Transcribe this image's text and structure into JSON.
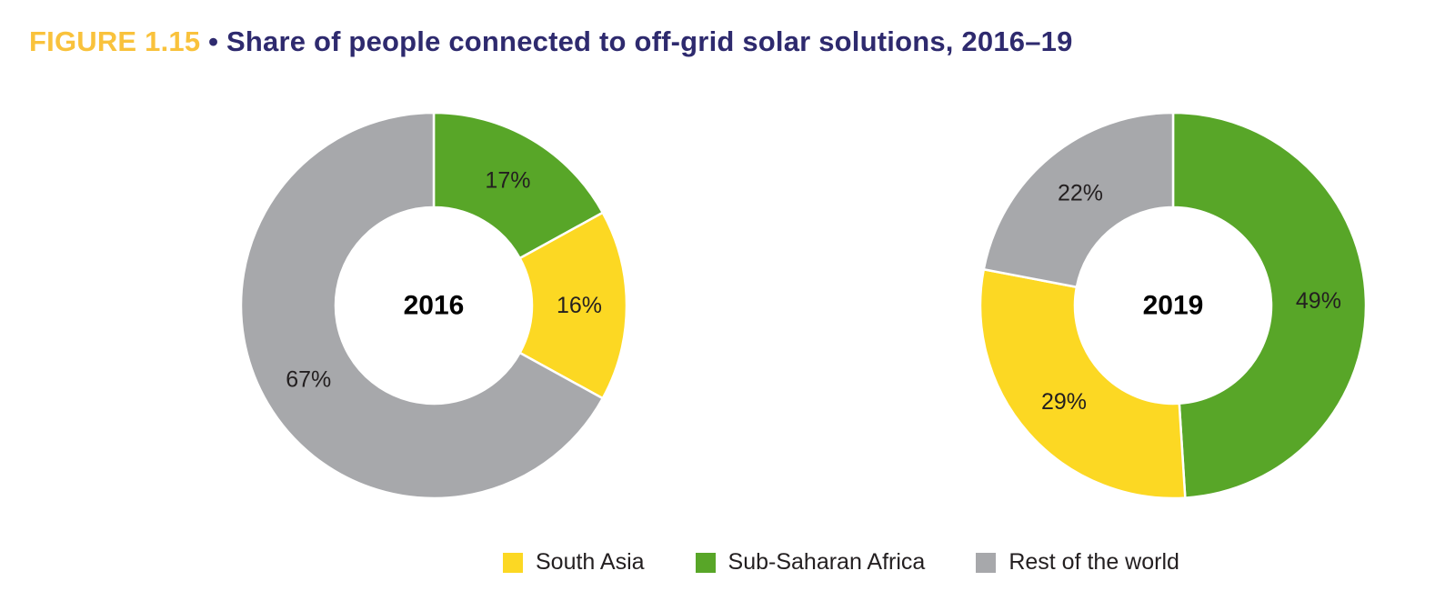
{
  "figure": {
    "label": "FIGURE 1.15",
    "separator": "•",
    "title": "Share of people connected to off-grid solar solutions, 2016–19"
  },
  "colors": {
    "South Asia": "#fcd823",
    "Sub-Saharan Africa": "#58a628",
    "Rest of the world": "#a7a8ab",
    "title_label": "#f9c23c",
    "title_text": "#2e2a6e"
  },
  "chart_data": [
    {
      "type": "pie",
      "center_label": "2016",
      "categories": [
        "Sub-Saharan Africa",
        "South Asia",
        "Rest of the world"
      ],
      "values": [
        17,
        16,
        67
      ],
      "labels": [
        "17%",
        "16%",
        "67%"
      ],
      "donut": true,
      "legend_position": "bottom"
    },
    {
      "type": "pie",
      "center_label": "2019",
      "categories": [
        "Sub-Saharan Africa",
        "South Asia",
        "Rest of the world"
      ],
      "values": [
        49,
        29,
        22
      ],
      "labels": [
        "49%",
        "29%",
        "22%"
      ],
      "donut": true,
      "legend_position": "bottom"
    }
  ],
  "legend": [
    {
      "label": "South Asia",
      "color": "#fcd823"
    },
    {
      "label": "Sub-Saharan Africa",
      "color": "#58a628"
    },
    {
      "label": "Rest of the world",
      "color": "#a7a8ab"
    }
  ]
}
